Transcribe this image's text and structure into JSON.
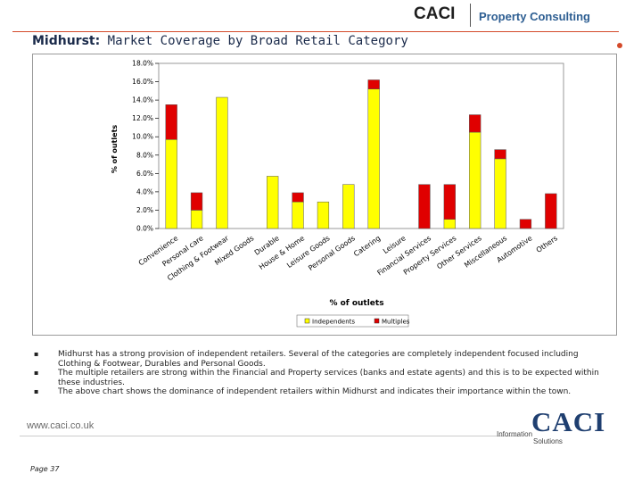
{
  "header": {
    "brand": "CACI",
    "division": "Property Consulting"
  },
  "page_title": {
    "place": "Midhurst:",
    "text": "Market Coverage by Broad Retail Category"
  },
  "colors": {
    "independents": "#ffff00",
    "multiples": "#e00000",
    "accent": "#d44a2a",
    "title": "#1a2a4a"
  },
  "chart_data": {
    "type": "bar",
    "stacked": true,
    "title": "",
    "xlabel": "% of outlets",
    "ylabel": "% of outlets",
    "ylim": [
      0,
      18
    ],
    "yticks": [
      "0.0%",
      "2.0%",
      "4.0%",
      "6.0%",
      "8.0%",
      "10.0%",
      "12.0%",
      "14.0%",
      "16.0%",
      "18.0%"
    ],
    "grid": false,
    "legend_position": "bottom",
    "categories": [
      "Convenience",
      "Personal care",
      "Clothing & Footwear",
      "Mixed Goods",
      "Durable",
      "House & Home",
      "Leisure Goods",
      "Personal Goods",
      "Catering",
      "Leisure",
      "Financial Services",
      "Property Services",
      "Other Services",
      "Miscellaneous",
      "Automotive",
      "Others"
    ],
    "series": [
      {
        "name": "Independents",
        "values": [
          9.7,
          2.0,
          14.3,
          0,
          5.7,
          2.9,
          2.9,
          4.8,
          15.2,
          0,
          0,
          1.0,
          10.5,
          7.6,
          0,
          0
        ]
      },
      {
        "name": "Multiples",
        "values": [
          3.8,
          1.9,
          0,
          0,
          0,
          1.0,
          0,
          0,
          1.0,
          0,
          4.8,
          3.8,
          1.9,
          1.0,
          1.0,
          3.8
        ]
      }
    ]
  },
  "bullets": [
    "Midhurst has a strong provision of independent retailers.  Several of the categories are completely independent focused including Clothing & Footwear, Durables and Personal Goods.",
    "The multiple retailers are strong within the Financial and Property services (banks and estate agents) and this is to be expected within these industries.",
    "The above chart shows the dominance of independent retailers within Midhurst and indicates their importance within the town."
  ],
  "footer": {
    "url": "www.caci.co.uk",
    "page": "Page 37",
    "logo_word": "CACI",
    "logo_line1": "Information",
    "logo_line2": "Solutions"
  }
}
